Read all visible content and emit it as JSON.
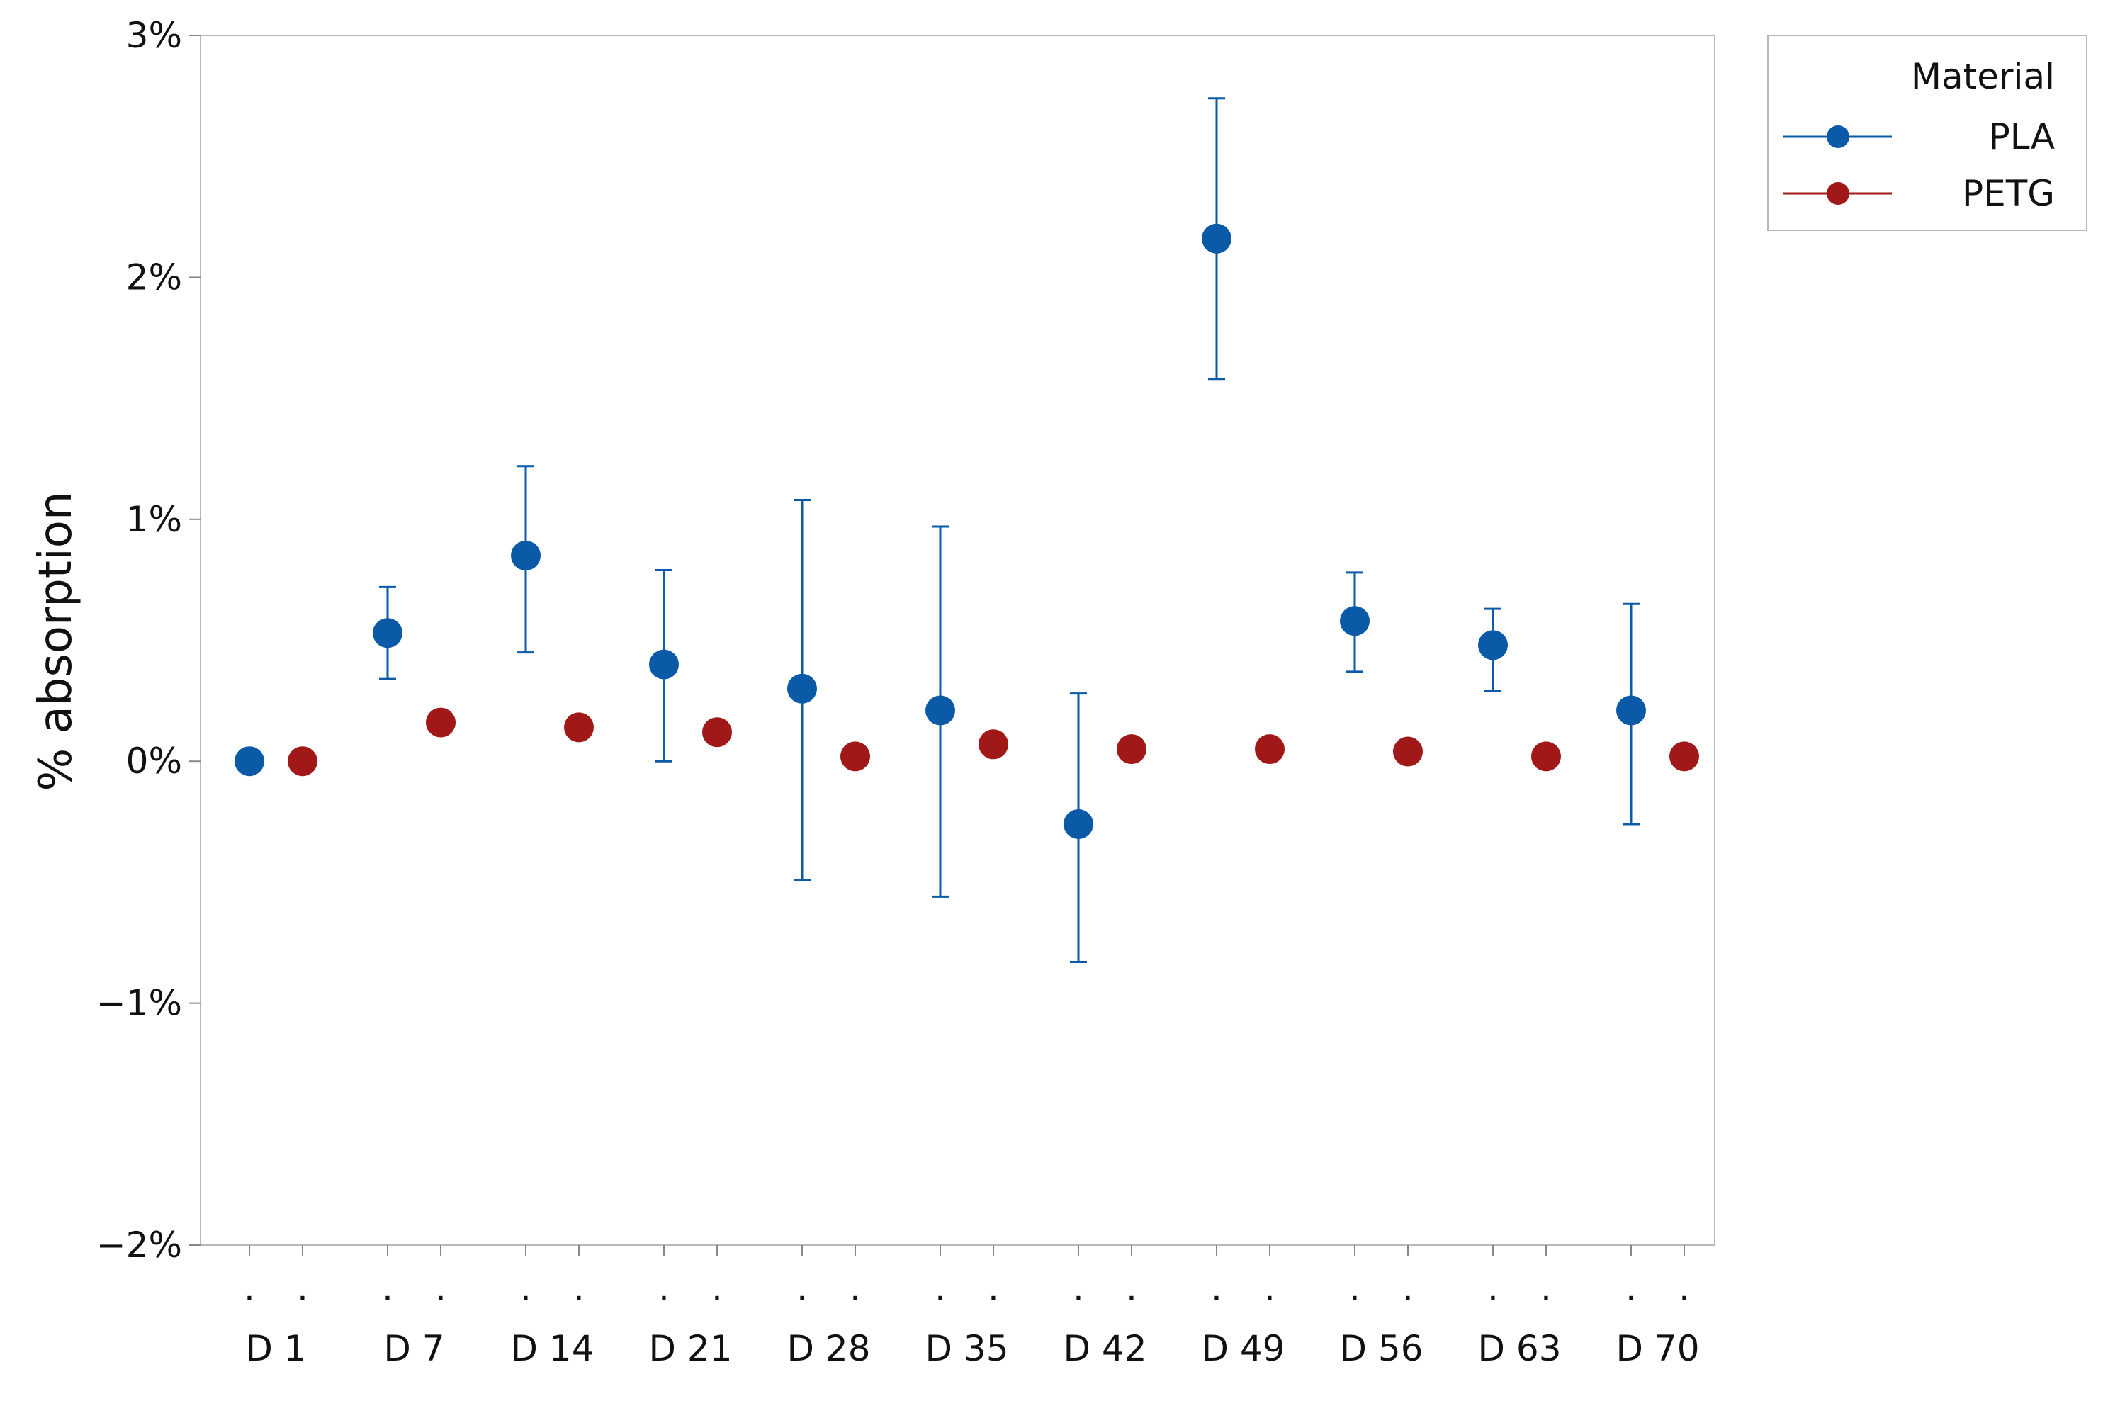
{
  "chart_data": {
    "type": "scatter",
    "ylabel": "% absorption",
    "xlabel": "",
    "ylim": [
      -0.02,
      0.03
    ],
    "yticks": [
      {
        "value": 0.03,
        "label": "3%"
      },
      {
        "value": 0.02,
        "label": "2%"
      },
      {
        "value": 0.01,
        "label": "1%"
      },
      {
        "value": 0.0,
        "label": "0%"
      },
      {
        "value": -0.01,
        "label": "−1%"
      },
      {
        "value": -0.02,
        "label": "−2%"
      }
    ],
    "categories": [
      "D 1",
      "D 7",
      "D 14",
      "D 21",
      "D 28",
      "D 35",
      "D 42",
      "D 49",
      "D 56",
      "D 63",
      "D 70"
    ],
    "sub_tick_label": ".",
    "grid": false,
    "legend": {
      "title": "Material",
      "position": "top-right-outside"
    },
    "series": [
      {
        "name": "PLA",
        "color": "#0a5aa8",
        "values": [
          0.0,
          0.0053,
          0.0085,
          0.004,
          0.003,
          0.0021,
          -0.0026,
          0.0216,
          0.0058,
          0.0048,
          0.0021
        ],
        "err_low": [
          null,
          0.0034,
          0.0045,
          0.0,
          -0.0049,
          -0.0056,
          -0.0083,
          0.0158,
          0.0037,
          0.0029,
          -0.0026
        ],
        "err_high": [
          null,
          0.0072,
          0.0122,
          0.0079,
          0.0108,
          0.0097,
          0.0028,
          0.0274,
          0.0078,
          0.0063,
          0.0065
        ]
      },
      {
        "name": "PETG",
        "color": "#a01818",
        "values": [
          0.0,
          0.0016,
          0.0014,
          0.0012,
          0.0002,
          0.0007,
          0.0005,
          0.0005,
          0.0004,
          0.0002,
          0.0002
        ],
        "err_low": [
          null,
          null,
          null,
          null,
          null,
          null,
          null,
          null,
          null,
          null,
          null
        ],
        "err_high": [
          null,
          null,
          null,
          null,
          null,
          null,
          null,
          null,
          null,
          null,
          null
        ]
      }
    ]
  }
}
